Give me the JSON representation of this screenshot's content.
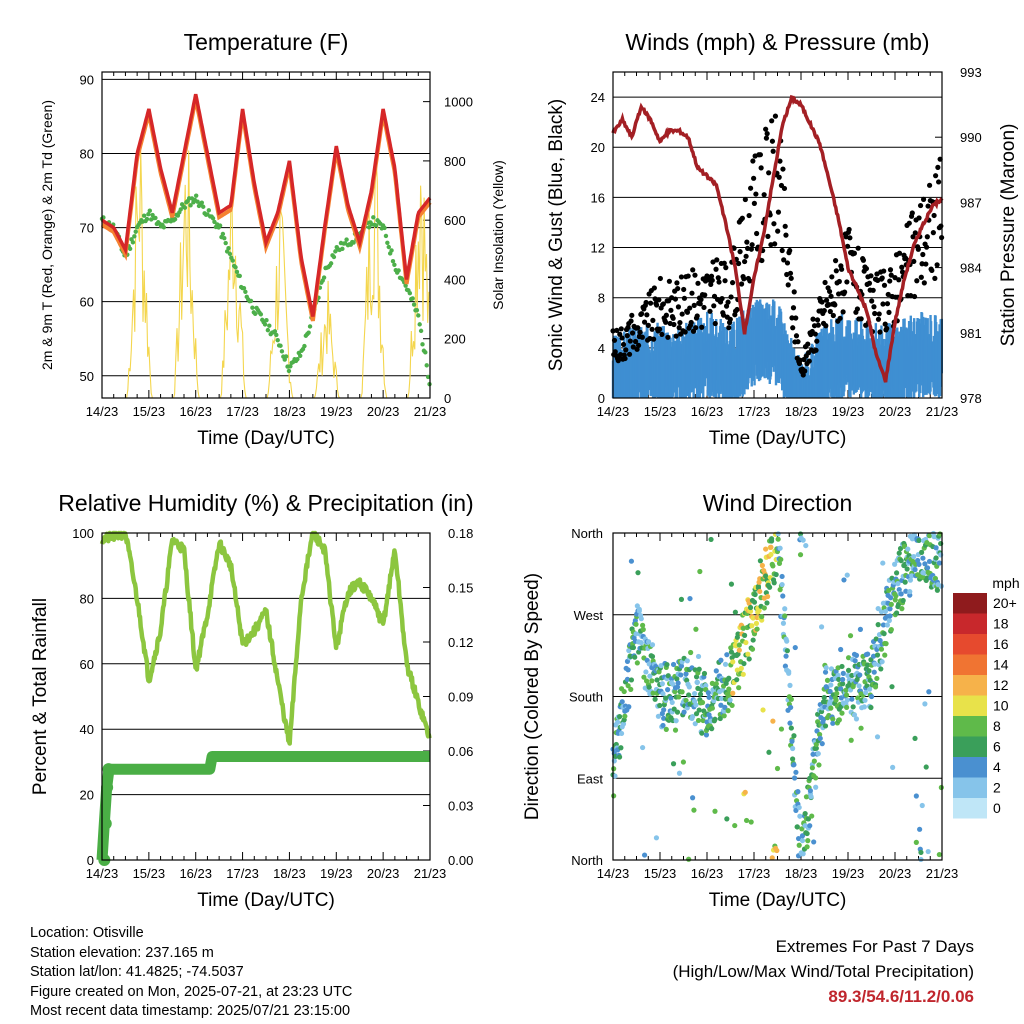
{
  "chart_data": [
    {
      "type": "line",
      "title": "Temperature (F)",
      "xlabel": "Time (Day/UTC)",
      "ylabel": "2m & 9m T (Red, Orange) & 2m Td (Green)",
      "ylabel_right": "Solar Insolation (Yellow)",
      "x_ticks": [
        "14/23",
        "15/23",
        "16/23",
        "17/23",
        "18/23",
        "19/23",
        "20/23",
        "21/23"
      ],
      "ylim": [
        47,
        91
      ],
      "y_ticks": [
        50,
        60,
        70,
        80,
        90
      ],
      "ylim_right": [
        0,
        1100
      ],
      "y_ticks_right": [
        0,
        200,
        400,
        600,
        800,
        1000
      ],
      "grid": "horizontal",
      "colors": {
        "temp_2m": "#d62728",
        "temp_9m": "#f58231",
        "dewpoint": "#4daf4a",
        "solar": "#f4d64e"
      },
      "series": [
        {
          "name": "2m T",
          "x": [
            0,
            0.25,
            0.5,
            0.75,
            1,
            1.25,
            1.5,
            1.75,
            2,
            2.25,
            2.5,
            2.75,
            3,
            3.25,
            3.5,
            3.75,
            4,
            4.25,
            4.5,
            4.75,
            5,
            5.25,
            5.5,
            5.75,
            6,
            6.25,
            6.5,
            6.75,
            7
          ],
          "values": [
            71,
            70,
            67,
            80,
            86,
            78,
            72,
            80,
            88,
            80,
            72,
            73,
            86,
            76,
            68,
            72,
            79,
            66,
            58,
            70,
            81,
            73,
            68,
            75,
            86,
            78,
            63,
            72,
            74
          ]
        },
        {
          "name": "2m Td",
          "x": [
            0,
            0.25,
            0.5,
            0.75,
            1,
            1.25,
            1.5,
            1.75,
            2,
            2.25,
            2.5,
            2.75,
            3,
            3.25,
            3.5,
            3.75,
            4,
            4.25,
            4.5,
            4.75,
            5,
            5.25,
            5.5,
            5.75,
            6,
            6.25,
            6.5,
            6.75,
            7
          ],
          "values": [
            71,
            70,
            66,
            70,
            72,
            70,
            71,
            73,
            74,
            72,
            70,
            66,
            62,
            59,
            57,
            55,
            51,
            53,
            58,
            64,
            67,
            68,
            69,
            71,
            70,
            65,
            62,
            58,
            49
          ]
        },
        {
          "name": "Solar",
          "x": [
            0.55,
            0.8,
            1.05,
            1.55,
            1.8,
            2.05,
            2.55,
            2.8,
            3.05,
            3.55,
            3.8,
            4.05,
            4.55,
            4.8,
            5.05,
            5.55,
            5.8,
            6.05,
            6.55,
            6.8,
            7
          ],
          "values": [
            0,
            1000,
            0,
            0,
            950,
            0,
            0,
            900,
            0,
            0,
            700,
            0,
            0,
            400,
            0,
            0,
            1050,
            0,
            0,
            1050,
            0
          ]
        }
      ]
    },
    {
      "type": "scatter",
      "title": "Winds (mph) & Pressure (mb)",
      "xlabel": "Time (Day/UTC)",
      "ylabel": "Sonic Wind & Gust (Blue, Black)",
      "ylabel_right": "Station Pressure (Maroon)",
      "x_ticks": [
        "14/23",
        "15/23",
        "16/23",
        "17/23",
        "18/23",
        "19/23",
        "20/23",
        "21/23"
      ],
      "ylim": [
        0,
        26
      ],
      "y_ticks": [
        0,
        4,
        8,
        12,
        16,
        20,
        24
      ],
      "ylim_right": [
        978,
        993
      ],
      "y_ticks_right": [
        978,
        981,
        984,
        987,
        990,
        993
      ],
      "grid": "horizontal",
      "colors": {
        "wind": "#3f8fd2",
        "gust": "#000000",
        "pressure": "#a31f24"
      },
      "series": [
        {
          "name": "Station Pressure",
          "x": [
            0,
            0.2,
            0.4,
            0.6,
            0.8,
            1.0,
            1.2,
            1.4,
            1.6,
            1.8,
            2.0,
            2.2,
            2.4,
            2.6,
            2.8,
            3.0,
            3.2,
            3.4,
            3.6,
            3.8,
            4.0,
            4.2,
            4.4,
            4.6,
            4.8,
            5.0,
            5.2,
            5.4,
            5.6,
            5.8,
            6.0,
            6.2,
            6.4,
            6.6,
            6.8,
            7.0
          ],
          "values": [
            990.2,
            990.8,
            990.0,
            991.4,
            990.8,
            989.8,
            990.3,
            990.3,
            990.0,
            988.6,
            988.2,
            987.8,
            986.0,
            984.0,
            981.0,
            983.5,
            985.5,
            988.0,
            990.5,
            991.8,
            991.5,
            990.6,
            989.7,
            988.0,
            986.2,
            984.0,
            983.0,
            982.0,
            980.0,
            978.8,
            981.5,
            983.5,
            985.0,
            986.0,
            986.8,
            987.2
          ]
        },
        {
          "name": "Wind Speed",
          "x": [
            0,
            0.5,
            1,
            1.5,
            2,
            2.5,
            3,
            3.5,
            4,
            4.5,
            5,
            5.5,
            6,
            6.5,
            7
          ],
          "values": [
            2,
            3,
            3,
            3,
            4,
            3,
            5,
            5,
            0,
            3,
            4,
            3,
            3,
            4,
            4
          ]
        },
        {
          "name": "Gust",
          "x": [
            0,
            0.5,
            1,
            1.5,
            2,
            2.5,
            3,
            3.5,
            4,
            4.5,
            5,
            5.5,
            6,
            6.5,
            7
          ],
          "values": [
            4,
            5,
            7,
            7,
            8,
            8,
            14,
            17,
            2,
            7,
            10,
            7,
            8,
            12,
            14
          ]
        }
      ]
    },
    {
      "type": "line",
      "title": "Relative Humidity (%) & Precipitation (in)",
      "xlabel": "Time (Day/UTC)",
      "ylabel": "Percent & Total Rainfall",
      "x_ticks": [
        "14/23",
        "15/23",
        "16/23",
        "17/23",
        "18/23",
        "19/23",
        "20/23",
        "21/23"
      ],
      "ylim": [
        0,
        100
      ],
      "y_ticks": [
        0,
        20,
        40,
        60,
        80,
        100
      ],
      "ylim_right": [
        0,
        0.18
      ],
      "y_ticks_right": [
        "0.00",
        "0.03",
        "0.06",
        "0.09",
        "0.12",
        "0.15",
        "0.18"
      ],
      "grid": "horizontal",
      "colors": {
        "rh": "#8cc63f",
        "precip": "#4aae45"
      },
      "series": [
        {
          "name": "Relative Humidity",
          "x": [
            0,
            0.25,
            0.5,
            0.75,
            1,
            1.25,
            1.5,
            1.75,
            2,
            2.25,
            2.5,
            2.75,
            3,
            3.25,
            3.5,
            3.75,
            4,
            4.25,
            4.5,
            4.75,
            5,
            5.25,
            5.5,
            5.75,
            6,
            6.25,
            6.5,
            6.75,
            7
          ],
          "values": [
            98,
            99,
            100,
            80,
            55,
            70,
            98,
            95,
            58,
            75,
            97,
            90,
            66,
            70,
            76,
            55,
            35,
            80,
            100,
            95,
            65,
            82,
            85,
            80,
            72,
            95,
            60,
            48,
            37
          ]
        },
        {
          "name": "Total Precipitation",
          "x": [
            0,
            0.05,
            0.1,
            0.15,
            0.2,
            2.3,
            2.35,
            2.4,
            7
          ],
          "values": [
            0,
            0.02,
            0.04,
            0.05,
            0.05,
            0.05,
            0.057,
            0.057,
            0.057
          ]
        }
      ]
    },
    {
      "type": "scatter",
      "title": "Wind Direction",
      "xlabel": "Time (Day/UTC)",
      "ylabel": "Direction (Colored By Speed)",
      "x_ticks": [
        "14/23",
        "15/23",
        "16/23",
        "17/23",
        "18/23",
        "19/23",
        "20/23",
        "21/23"
      ],
      "y_ticks": [
        "North",
        "East",
        "South",
        "West",
        "North"
      ],
      "ylim": [
        0,
        360
      ],
      "grid": "horizontal",
      "legend": "right",
      "colorbar_title": "mph",
      "colorbar_labels": [
        "0",
        "2",
        "4",
        "6",
        "8",
        "10",
        "12",
        "14",
        "16",
        "18",
        "20+"
      ],
      "colorbar_colors": [
        "#bfe6f7",
        "#86c4ea",
        "#4a90d0",
        "#3a9f5a",
        "#5fba4a",
        "#e8e24a",
        "#f6b24a",
        "#f07432",
        "#e64a2e",
        "#c8282c",
        "#8f1b1d"
      ],
      "series": [
        {
          "name": "Direction",
          "x": [
            0,
            0.5,
            1,
            1.5,
            2,
            2.5,
            3,
            3.5,
            4,
            4.5,
            5,
            5.5,
            6,
            6.5,
            7
          ],
          "values": [
            100,
            250,
            180,
            190,
            170,
            200,
            270,
            350,
            0,
            180,
            190,
            200,
            300,
            340,
            330
          ]
        }
      ]
    }
  ],
  "info": {
    "location": "Location: Otisville",
    "elevation": "Station elevation: 237.165 m",
    "latlon": "Station lat/lon: 41.4825; -74.5037",
    "created": "Figure created on Mon, 2025-07-21, at 23:23 UTC",
    "timestamp": "Most recent data timestamp: 2025/07/21 23:15:00"
  },
  "extremes": {
    "title": "Extremes For Past 7 Days",
    "subtitle": "(High/Low/Max Wind/Total Precipitation)",
    "values": "89.3/54.6/11.2/0.06"
  }
}
